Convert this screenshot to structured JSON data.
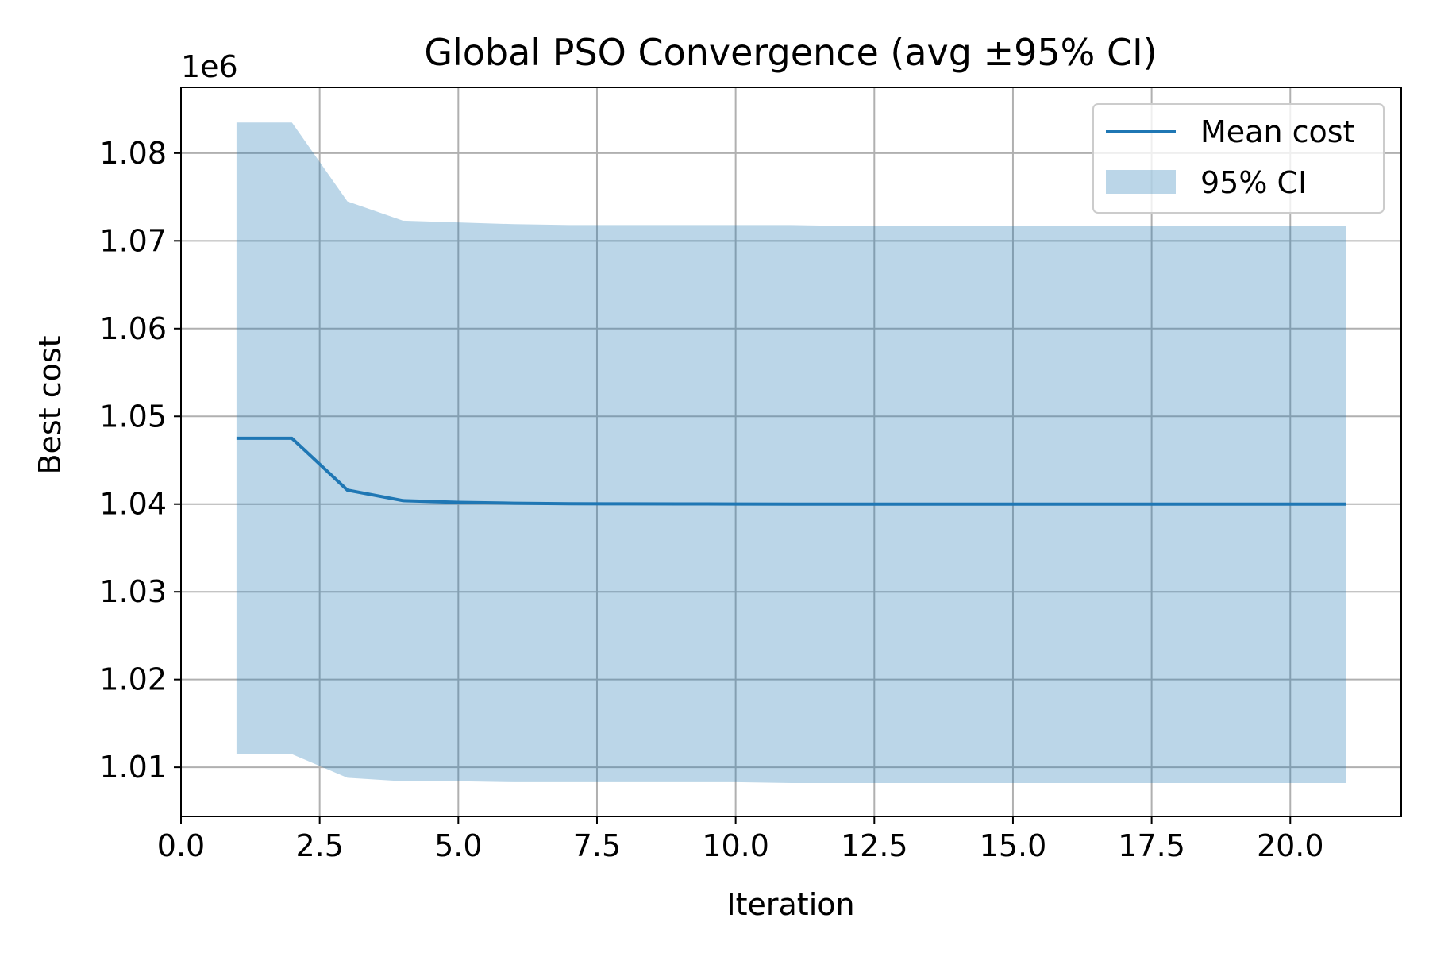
{
  "chart_data": {
    "type": "line",
    "title": "Global PSO Convergence (avg ±95% CI)",
    "xlabel": "Iteration",
    "ylabel": "Best cost",
    "offset_label": "1e6",
    "xlim": [
      0,
      22
    ],
    "ylim": [
      1.0044,
      1.0875
    ],
    "grid": true,
    "legend_position": "top-right",
    "x_ticks": [
      0,
      2.5,
      5,
      7.5,
      10,
      12.5,
      15,
      17.5,
      20
    ],
    "x_tick_labels": [
      "0.0",
      "2.5",
      "5.0",
      "7.5",
      "10.0",
      "12.5",
      "15.0",
      "17.5",
      "20.0"
    ],
    "y_ticks": [
      1.01,
      1.02,
      1.03,
      1.04,
      1.05,
      1.06,
      1.07,
      1.08
    ],
    "y_tick_labels": [
      "1.01",
      "1.02",
      "1.03",
      "1.04",
      "1.05",
      "1.06",
      "1.07",
      "1.08"
    ],
    "x": [
      1,
      2,
      3,
      4,
      5,
      6,
      7,
      8,
      9,
      10,
      11,
      12,
      13,
      14,
      15,
      16,
      17,
      18,
      19,
      20,
      21
    ],
    "series": [
      {
        "name": "Mean cost",
        "kind": "line",
        "color": "#1f77b4",
        "values": [
          1.0475,
          1.0475,
          1.0416,
          1.0404,
          1.0402,
          1.0401,
          1.04005,
          1.04003,
          1.04002,
          1.04001,
          1.04,
          1.04,
          1.04,
          1.04,
          1.04,
          1.04,
          1.04,
          1.04,
          1.04,
          1.04,
          1.04
        ]
      },
      {
        "name": "95% CI",
        "kind": "band",
        "color": "#1f77b4",
        "opacity": 0.3,
        "upper": [
          1.0835,
          1.0835,
          1.0745,
          1.0723,
          1.0721,
          1.0719,
          1.0718,
          1.0718,
          1.0718,
          1.0718,
          1.0718,
          1.0717,
          1.0717,
          1.0717,
          1.0717,
          1.0717,
          1.0717,
          1.0717,
          1.0717,
          1.0717,
          1.0717
        ],
        "lower": [
          1.0115,
          1.0115,
          1.0088,
          1.0084,
          1.0084,
          1.0083,
          1.0083,
          1.0083,
          1.0083,
          1.0083,
          1.0082,
          1.0082,
          1.0082,
          1.0082,
          1.0082,
          1.0082,
          1.0082,
          1.0082,
          1.0082,
          1.0082,
          1.0082
        ]
      }
    ]
  }
}
